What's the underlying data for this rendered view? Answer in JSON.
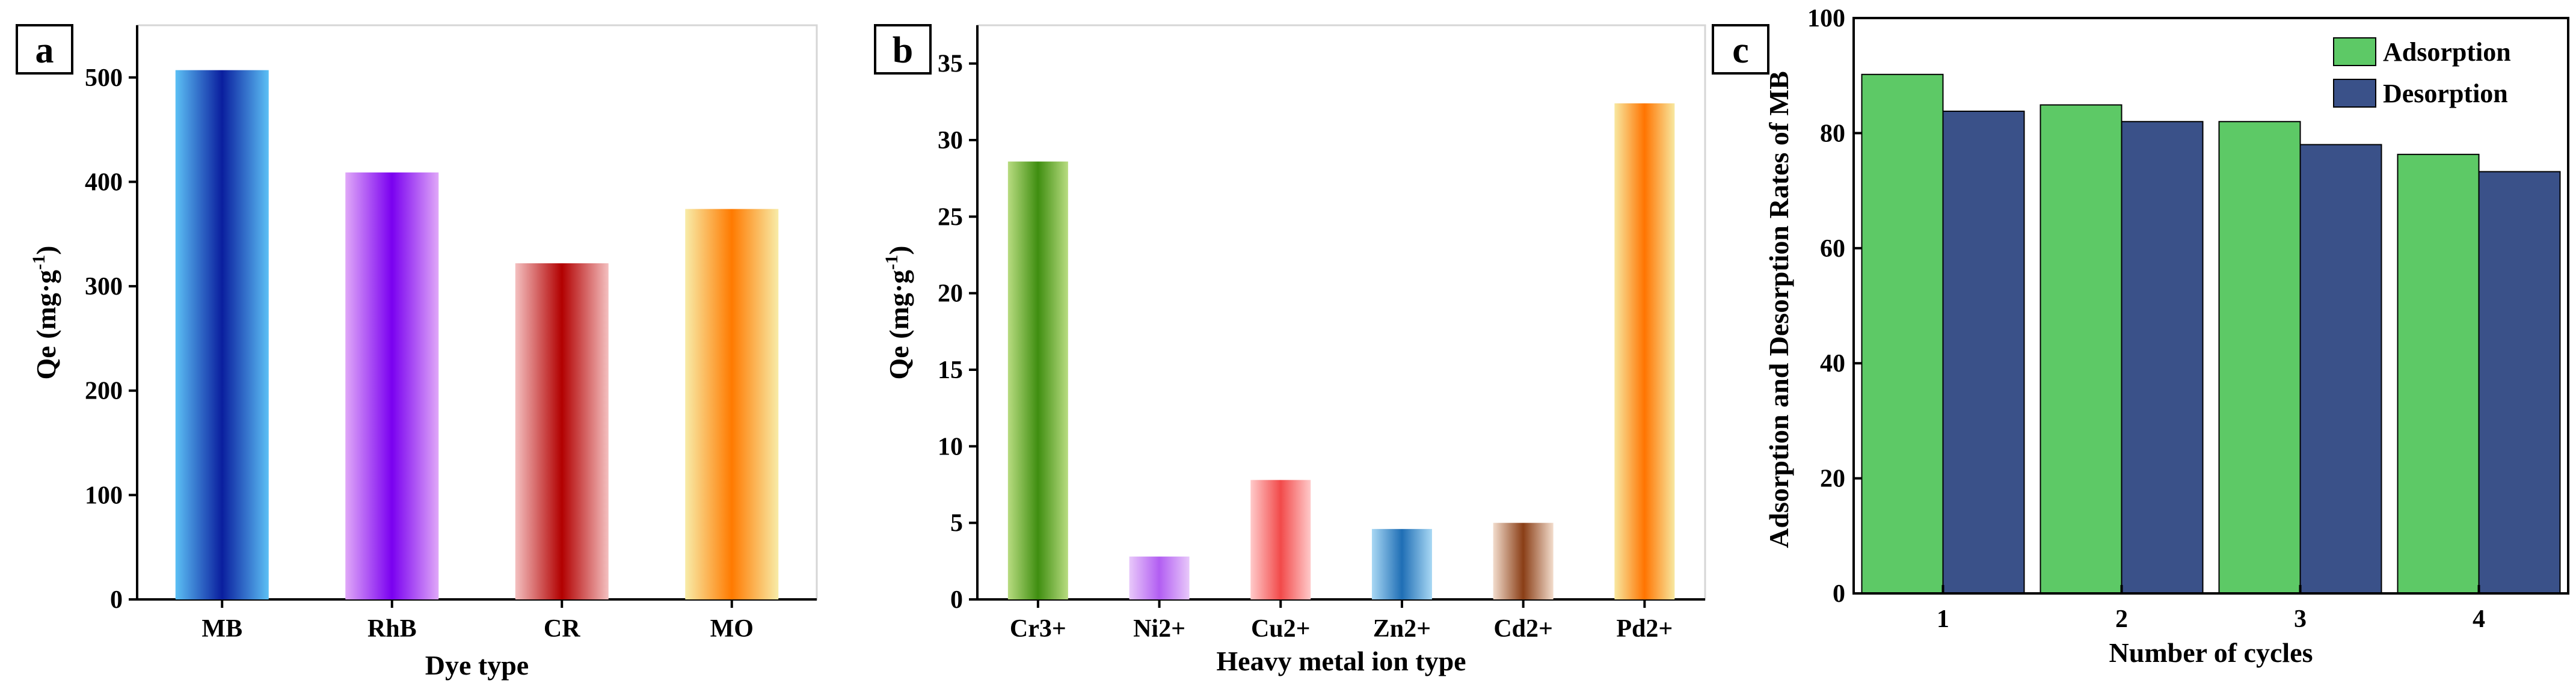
{
  "chart_data": [
    {
      "type": "bar",
      "panel_label": "a",
      "categories": [
        "MB",
        "RhB",
        "CR",
        "MO"
      ],
      "values": [
        507,
        409,
        322,
        374
      ],
      "xlabel": "Dye type",
      "ylabel": "Qe (mg·g",
      "ylabel_sup": "-1",
      "ylabel_close": ")",
      "ylim": [
        0,
        550
      ],
      "yticks": [
        0,
        100,
        200,
        300,
        400,
        500
      ],
      "bar_colors": [
        [
          "#5cc0f5",
          "#0a1e9e"
        ],
        [
          "#e0a8f8",
          "#7a00f0"
        ],
        [
          "#f4c0c0",
          "#b20000"
        ],
        [
          "#f8eca8",
          "#ff7a00"
        ]
      ]
    },
    {
      "type": "bar",
      "panel_label": "b",
      "categories": [
        "Cr3+",
        "Ni2+",
        "Cu2+",
        "Zn2+",
        "Cd2+",
        "Pd2+"
      ],
      "values": [
        28.6,
        2.8,
        7.8,
        4.6,
        5.0,
        32.4
      ],
      "xlabel": "Heavy metal ion type",
      "ylabel": "Qe (mg·g",
      "ylabel_sup": "-1",
      "ylabel_close": ")",
      "ylim": [
        0,
        37.5
      ],
      "yticks": [
        0,
        5,
        10,
        15,
        20,
        25,
        30,
        35
      ],
      "bar_colors": [
        [
          "#b8dc80",
          "#3f8e10"
        ],
        [
          "#e8c8fa",
          "#b25ef2"
        ],
        [
          "#ffcaca",
          "#f24a4a"
        ],
        [
          "#a8d8f4",
          "#1f6eb5"
        ],
        [
          "#f2dccc",
          "#8a3e16"
        ],
        [
          "#f8e8a0",
          "#ff7400"
        ]
      ]
    },
    {
      "type": "bar",
      "panel_label": "c",
      "categories": [
        "1",
        "2",
        "3",
        "4"
      ],
      "series": [
        {
          "name": "Adsorption",
          "values": [
            90.2,
            84.9,
            82.0,
            76.3
          ],
          "color": "#5dc966"
        },
        {
          "name": "Desorption",
          "values": [
            83.8,
            82.0,
            78.0,
            73.3
          ],
          "color": "#3a5189"
        }
      ],
      "xlabel": "Number of cycles",
      "ylabel": "Adsorption and Desorption Rates of MB",
      "ylim": [
        0,
        100
      ],
      "yticks": [
        0,
        20,
        40,
        60,
        80,
        100
      ],
      "legend": "top-right"
    }
  ]
}
